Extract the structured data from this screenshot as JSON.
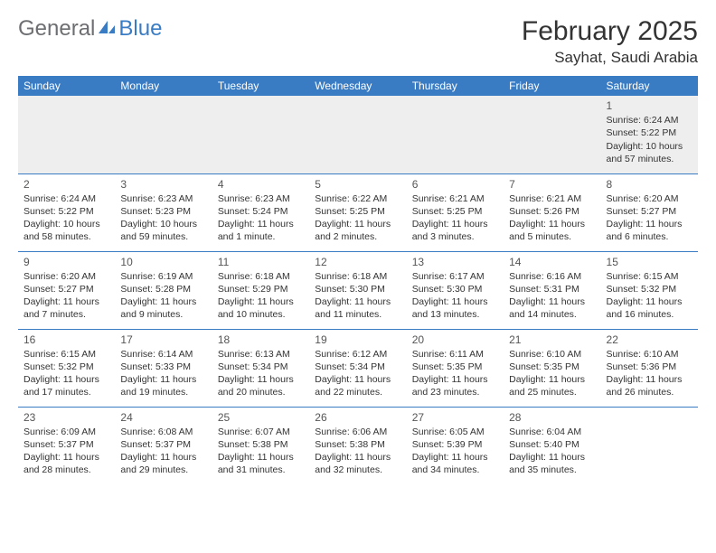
{
  "logo": {
    "text1": "General",
    "text2": "Blue"
  },
  "title": "February 2025",
  "location": "Sayhat, Saudi Arabia",
  "colors": {
    "brand_blue": "#3a7cc4",
    "logo_gray": "#6d6e71",
    "week1_bg": "#eeeeee",
    "text": "#333333"
  },
  "day_headers": [
    "Sunday",
    "Monday",
    "Tuesday",
    "Wednesday",
    "Thursday",
    "Friday",
    "Saturday"
  ],
  "weeks": [
    [
      null,
      null,
      null,
      null,
      null,
      null,
      {
        "n": "1",
        "sunrise": "Sunrise: 6:24 AM",
        "sunset": "Sunset: 5:22 PM",
        "daylight1": "Daylight: 10 hours",
        "daylight2": "and 57 minutes."
      }
    ],
    [
      {
        "n": "2",
        "sunrise": "Sunrise: 6:24 AM",
        "sunset": "Sunset: 5:22 PM",
        "daylight1": "Daylight: 10 hours",
        "daylight2": "and 58 minutes."
      },
      {
        "n": "3",
        "sunrise": "Sunrise: 6:23 AM",
        "sunset": "Sunset: 5:23 PM",
        "daylight1": "Daylight: 10 hours",
        "daylight2": "and 59 minutes."
      },
      {
        "n": "4",
        "sunrise": "Sunrise: 6:23 AM",
        "sunset": "Sunset: 5:24 PM",
        "daylight1": "Daylight: 11 hours",
        "daylight2": "and 1 minute."
      },
      {
        "n": "5",
        "sunrise": "Sunrise: 6:22 AM",
        "sunset": "Sunset: 5:25 PM",
        "daylight1": "Daylight: 11 hours",
        "daylight2": "and 2 minutes."
      },
      {
        "n": "6",
        "sunrise": "Sunrise: 6:21 AM",
        "sunset": "Sunset: 5:25 PM",
        "daylight1": "Daylight: 11 hours",
        "daylight2": "and 3 minutes."
      },
      {
        "n": "7",
        "sunrise": "Sunrise: 6:21 AM",
        "sunset": "Sunset: 5:26 PM",
        "daylight1": "Daylight: 11 hours",
        "daylight2": "and 5 minutes."
      },
      {
        "n": "8",
        "sunrise": "Sunrise: 6:20 AM",
        "sunset": "Sunset: 5:27 PM",
        "daylight1": "Daylight: 11 hours",
        "daylight2": "and 6 minutes."
      }
    ],
    [
      {
        "n": "9",
        "sunrise": "Sunrise: 6:20 AM",
        "sunset": "Sunset: 5:27 PM",
        "daylight1": "Daylight: 11 hours",
        "daylight2": "and 7 minutes."
      },
      {
        "n": "10",
        "sunrise": "Sunrise: 6:19 AM",
        "sunset": "Sunset: 5:28 PM",
        "daylight1": "Daylight: 11 hours",
        "daylight2": "and 9 minutes."
      },
      {
        "n": "11",
        "sunrise": "Sunrise: 6:18 AM",
        "sunset": "Sunset: 5:29 PM",
        "daylight1": "Daylight: 11 hours",
        "daylight2": "and 10 minutes."
      },
      {
        "n": "12",
        "sunrise": "Sunrise: 6:18 AM",
        "sunset": "Sunset: 5:30 PM",
        "daylight1": "Daylight: 11 hours",
        "daylight2": "and 11 minutes."
      },
      {
        "n": "13",
        "sunrise": "Sunrise: 6:17 AM",
        "sunset": "Sunset: 5:30 PM",
        "daylight1": "Daylight: 11 hours",
        "daylight2": "and 13 minutes."
      },
      {
        "n": "14",
        "sunrise": "Sunrise: 6:16 AM",
        "sunset": "Sunset: 5:31 PM",
        "daylight1": "Daylight: 11 hours",
        "daylight2": "and 14 minutes."
      },
      {
        "n": "15",
        "sunrise": "Sunrise: 6:15 AM",
        "sunset": "Sunset: 5:32 PM",
        "daylight1": "Daylight: 11 hours",
        "daylight2": "and 16 minutes."
      }
    ],
    [
      {
        "n": "16",
        "sunrise": "Sunrise: 6:15 AM",
        "sunset": "Sunset: 5:32 PM",
        "daylight1": "Daylight: 11 hours",
        "daylight2": "and 17 minutes."
      },
      {
        "n": "17",
        "sunrise": "Sunrise: 6:14 AM",
        "sunset": "Sunset: 5:33 PM",
        "daylight1": "Daylight: 11 hours",
        "daylight2": "and 19 minutes."
      },
      {
        "n": "18",
        "sunrise": "Sunrise: 6:13 AM",
        "sunset": "Sunset: 5:34 PM",
        "daylight1": "Daylight: 11 hours",
        "daylight2": "and 20 minutes."
      },
      {
        "n": "19",
        "sunrise": "Sunrise: 6:12 AM",
        "sunset": "Sunset: 5:34 PM",
        "daylight1": "Daylight: 11 hours",
        "daylight2": "and 22 minutes."
      },
      {
        "n": "20",
        "sunrise": "Sunrise: 6:11 AM",
        "sunset": "Sunset: 5:35 PM",
        "daylight1": "Daylight: 11 hours",
        "daylight2": "and 23 minutes."
      },
      {
        "n": "21",
        "sunrise": "Sunrise: 6:10 AM",
        "sunset": "Sunset: 5:35 PM",
        "daylight1": "Daylight: 11 hours",
        "daylight2": "and 25 minutes."
      },
      {
        "n": "22",
        "sunrise": "Sunrise: 6:10 AM",
        "sunset": "Sunset: 5:36 PM",
        "daylight1": "Daylight: 11 hours",
        "daylight2": "and 26 minutes."
      }
    ],
    [
      {
        "n": "23",
        "sunrise": "Sunrise: 6:09 AM",
        "sunset": "Sunset: 5:37 PM",
        "daylight1": "Daylight: 11 hours",
        "daylight2": "and 28 minutes."
      },
      {
        "n": "24",
        "sunrise": "Sunrise: 6:08 AM",
        "sunset": "Sunset: 5:37 PM",
        "daylight1": "Daylight: 11 hours",
        "daylight2": "and 29 minutes."
      },
      {
        "n": "25",
        "sunrise": "Sunrise: 6:07 AM",
        "sunset": "Sunset: 5:38 PM",
        "daylight1": "Daylight: 11 hours",
        "daylight2": "and 31 minutes."
      },
      {
        "n": "26",
        "sunrise": "Sunrise: 6:06 AM",
        "sunset": "Sunset: 5:38 PM",
        "daylight1": "Daylight: 11 hours",
        "daylight2": "and 32 minutes."
      },
      {
        "n": "27",
        "sunrise": "Sunrise: 6:05 AM",
        "sunset": "Sunset: 5:39 PM",
        "daylight1": "Daylight: 11 hours",
        "daylight2": "and 34 minutes."
      },
      {
        "n": "28",
        "sunrise": "Sunrise: 6:04 AM",
        "sunset": "Sunset: 5:40 PM",
        "daylight1": "Daylight: 11 hours",
        "daylight2": "and 35 minutes."
      },
      null
    ]
  ]
}
